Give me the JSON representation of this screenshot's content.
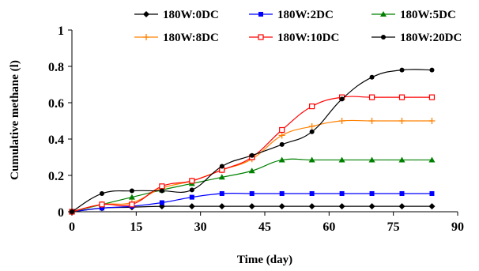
{
  "chart_data": {
    "type": "line",
    "title": "",
    "xlabel": "Time (day)",
    "ylabel": "Cumulative methane (l)",
    "xlim": [
      0,
      90
    ],
    "ylim": [
      0,
      1
    ],
    "xticks": [
      0,
      15,
      30,
      45,
      60,
      75,
      90
    ],
    "yticks": [
      0,
      0.2,
      0.4,
      0.6,
      0.8,
      1
    ],
    "x_tick_labels": [
      "0",
      "15",
      "30",
      "45",
      "60",
      "75",
      "90"
    ],
    "y_tick_labels": [
      "0",
      "0.2",
      "0.4",
      "0.6",
      "0.8",
      "1"
    ],
    "grid": false,
    "legend_position": "top",
    "series": [
      {
        "name": "180W:0DC",
        "color": "#000000",
        "marker": "diamond-filled",
        "x": [
          0,
          7,
          14,
          21,
          28,
          35,
          42,
          49,
          56,
          63,
          70,
          77,
          84
        ],
        "y": [
          0,
          0.02,
          0.025,
          0.03,
          0.03,
          0.03,
          0.03,
          0.03,
          0.03,
          0.03,
          0.03,
          0.03,
          0.03
        ]
      },
      {
        "name": "180W:2DC",
        "color": "#0000ff",
        "marker": "square-filled",
        "x": [
          0,
          7,
          14,
          21,
          28,
          35,
          42,
          49,
          56,
          63,
          70,
          77,
          84
        ],
        "y": [
          0,
          0.02,
          0.03,
          0.05,
          0.08,
          0.1,
          0.1,
          0.1,
          0.1,
          0.1,
          0.1,
          0.1,
          0.1
        ]
      },
      {
        "name": "180W:5DC",
        "color": "#008000",
        "marker": "triangle-filled",
        "x": [
          0,
          7,
          14,
          21,
          28,
          35,
          42,
          49,
          56,
          63,
          70,
          77,
          84
        ],
        "y": [
          0,
          0.04,
          0.08,
          0.12,
          0.155,
          0.19,
          0.225,
          0.285,
          0.285,
          0.285,
          0.285,
          0.285,
          0.285
        ]
      },
      {
        "name": "180W:8DC",
        "color": "#ff8000",
        "marker": "plus",
        "x": [
          0,
          7,
          14,
          21,
          28,
          35,
          42,
          49,
          56,
          63,
          70,
          77,
          84
        ],
        "y": [
          0,
          0.04,
          0.05,
          0.13,
          0.17,
          0.23,
          0.29,
          0.42,
          0.47,
          0.5,
          0.5,
          0.5,
          0.5
        ]
      },
      {
        "name": "180W:10DC",
        "color": "#ff0000",
        "marker": "square-open",
        "x": [
          0,
          7,
          14,
          21,
          28,
          35,
          42,
          49,
          56,
          63,
          70,
          77,
          84
        ],
        "y": [
          0,
          0.04,
          0.04,
          0.14,
          0.17,
          0.23,
          0.3,
          0.45,
          0.58,
          0.63,
          0.63,
          0.63,
          0.63
        ]
      },
      {
        "name": "180W:20DC",
        "color": "#000000",
        "marker": "circle-filled",
        "x": [
          0,
          7,
          14,
          21,
          28,
          35,
          42,
          49,
          56,
          63,
          70,
          77,
          84
        ],
        "y": [
          0,
          0.1,
          0.115,
          0.115,
          0.12,
          0.25,
          0.31,
          0.37,
          0.44,
          0.62,
          0.74,
          0.78,
          0.78
        ]
      }
    ]
  }
}
